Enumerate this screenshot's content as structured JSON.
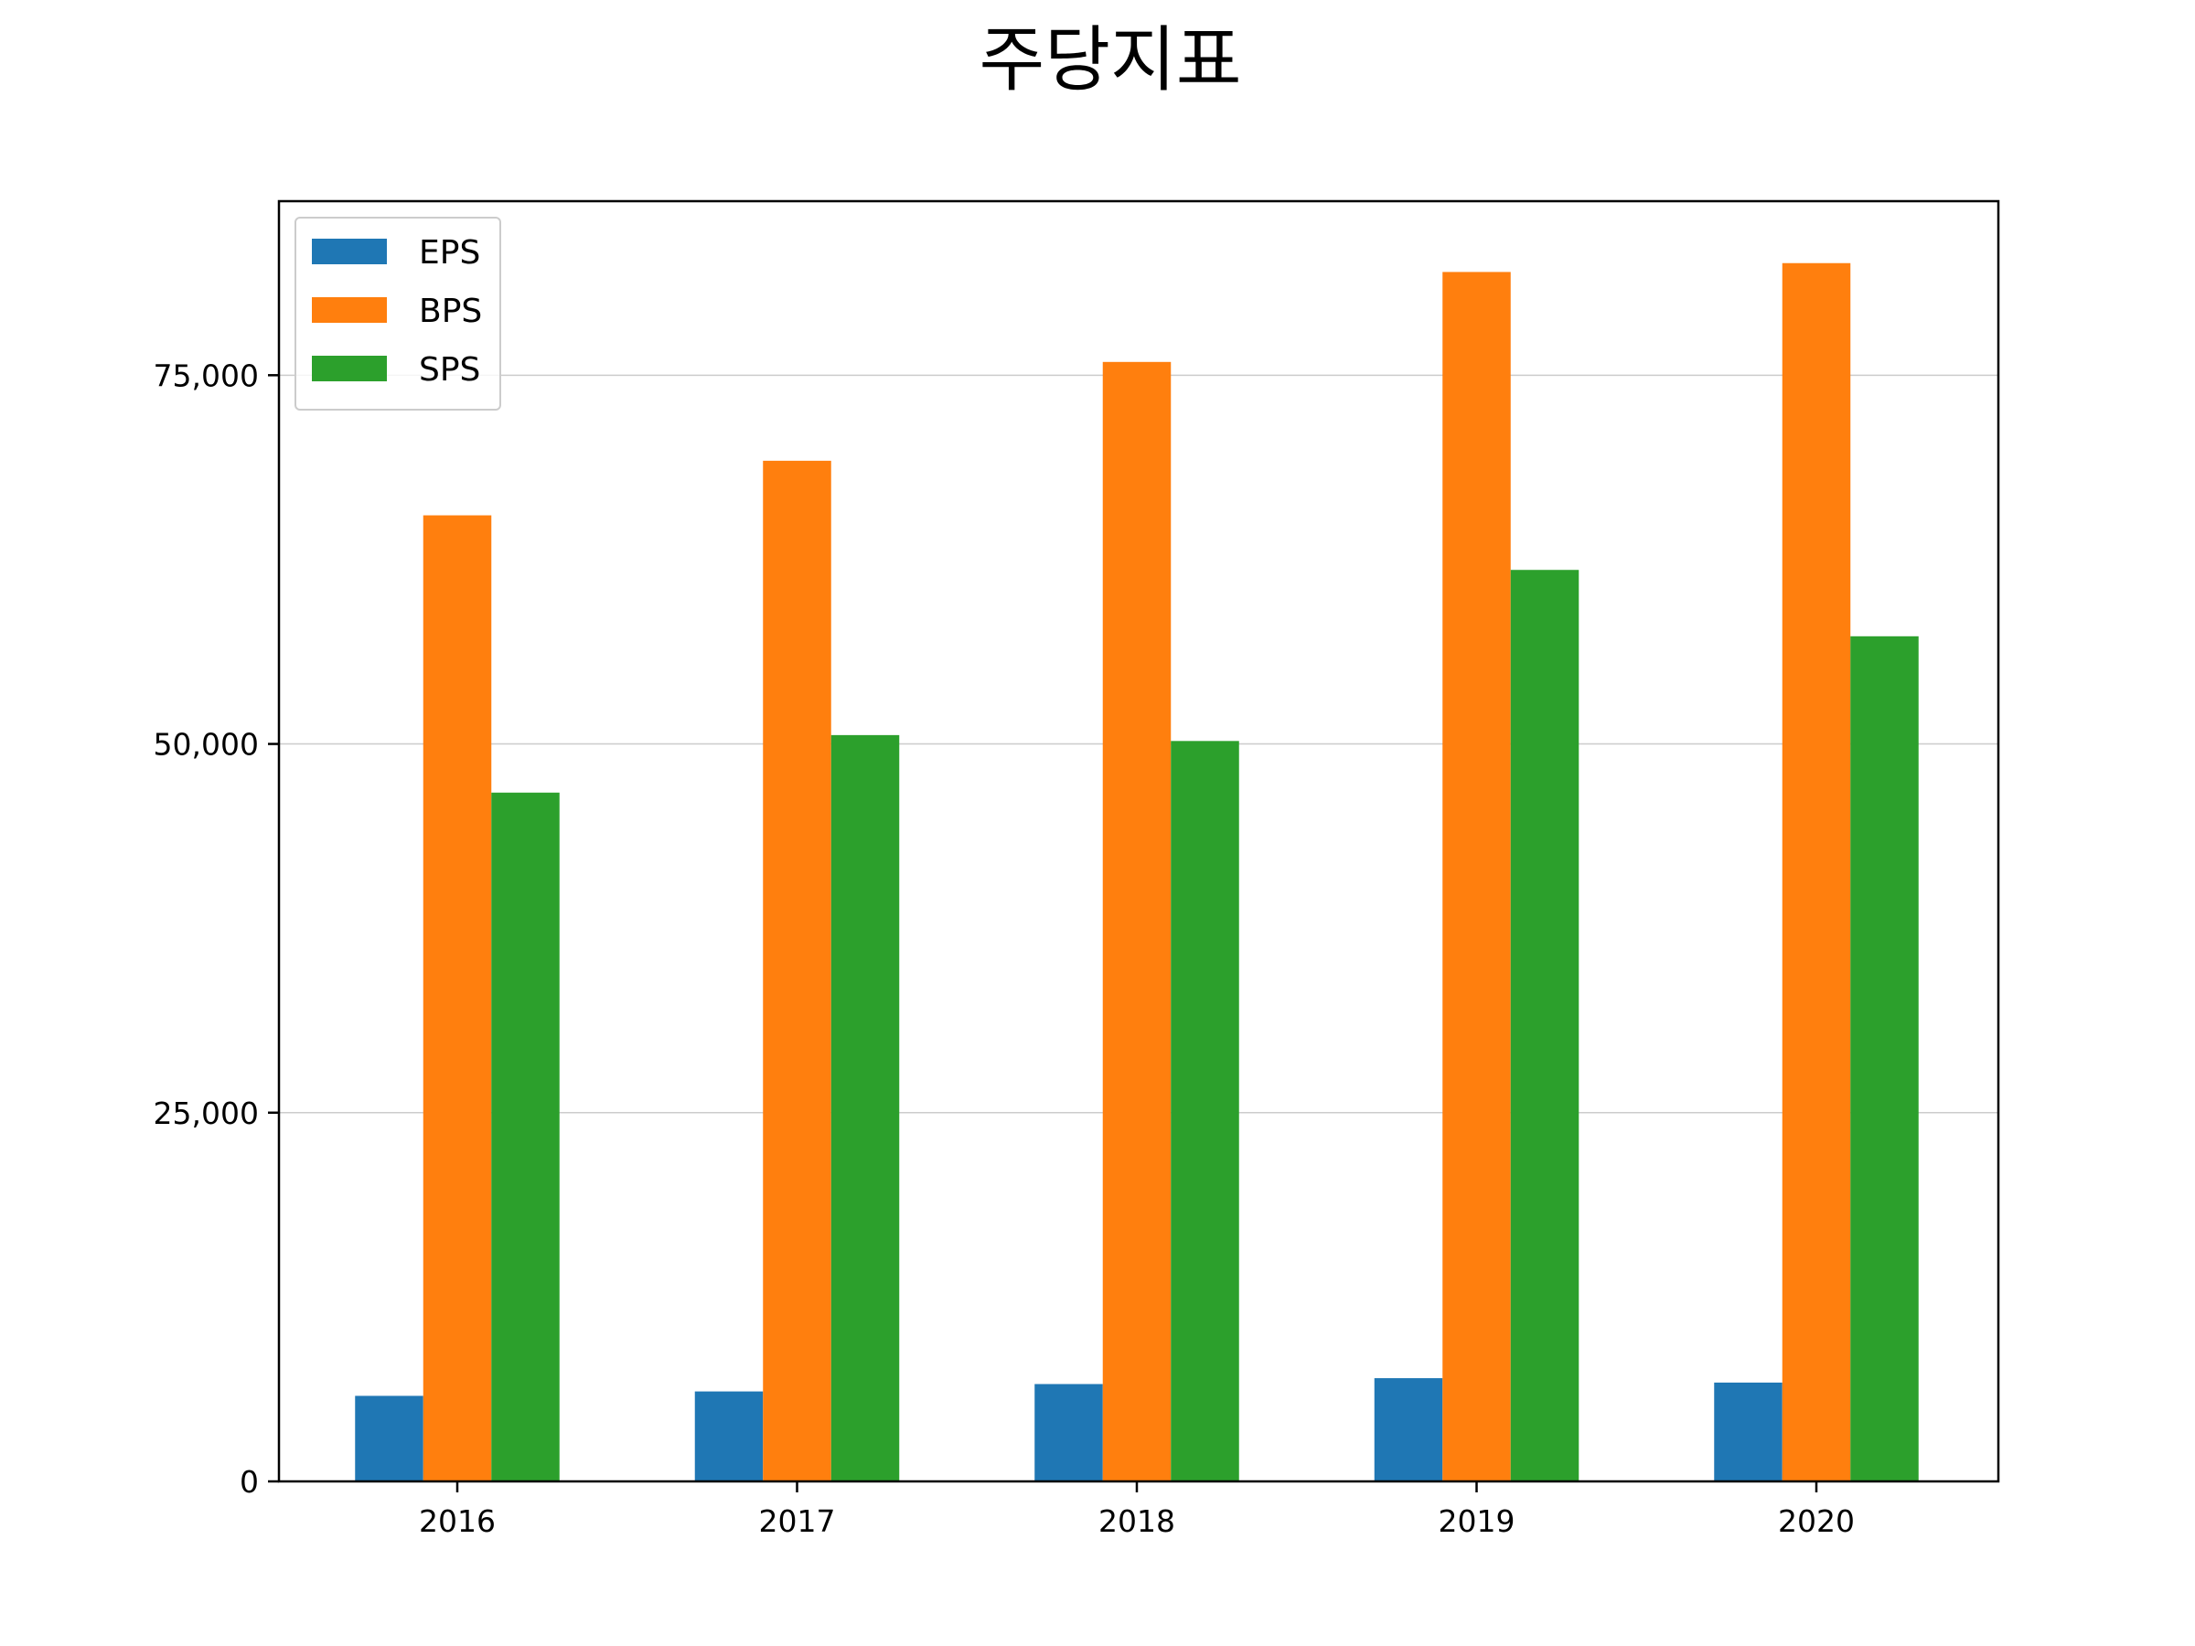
{
  "chart_data": {
    "type": "bar",
    "title": "주당지표",
    "xlabel": "",
    "ylabel": "",
    "categories": [
      "2016",
      "2017",
      "2018",
      "2019",
      "2020"
    ],
    "series": [
      {
        "name": "EPS",
        "color": "#1f77b4",
        "values": [
          5800,
          6100,
          6600,
          7000,
          6700
        ]
      },
      {
        "name": "BPS",
        "color": "#ff7f0e",
        "values": [
          65500,
          69200,
          75900,
          82000,
          82600
        ]
      },
      {
        "name": "SPS",
        "color": "#2ca02c",
        "values": [
          46700,
          50600,
          50200,
          61800,
          57300
        ]
      }
    ],
    "ylim": [
      0,
      86800
    ],
    "yticks": [
      0,
      25000,
      50000,
      75000
    ],
    "ytick_labels": [
      "0",
      "25,000",
      "50,000",
      "75,000"
    ],
    "grid": "horizontal",
    "legend": "top-left"
  }
}
